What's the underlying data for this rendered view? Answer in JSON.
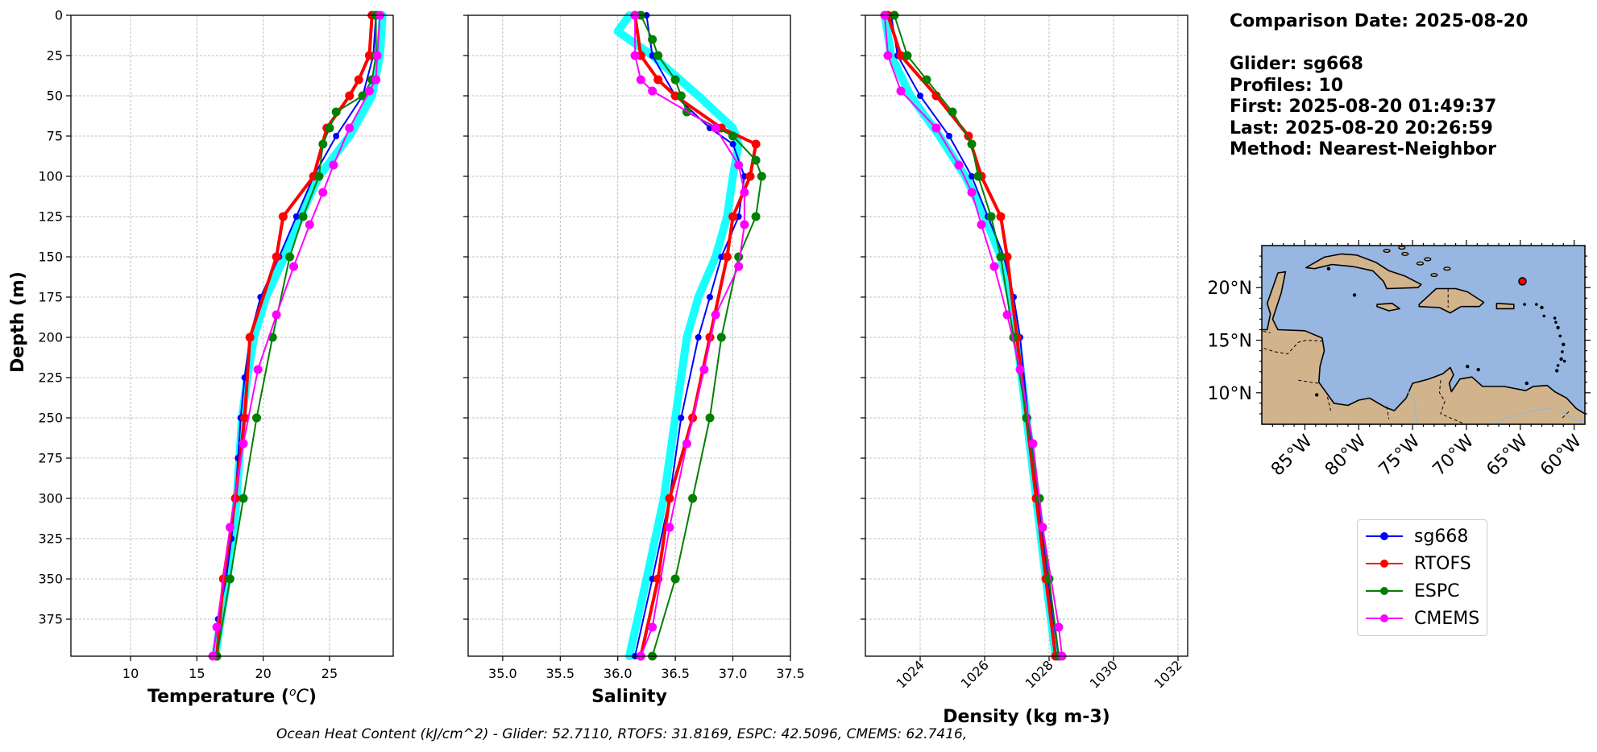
{
  "info": {
    "date": "Comparison Date: 2025-08-20",
    "glider": "Glider: sg668",
    "profiles": "Profiles: 10",
    "first": "First: 2025-08-20 01:49:37",
    "last": "Last: 2025-08-20 20:26:59",
    "method": "Method: Nearest-Neighbor"
  },
  "caption": "Ocean Heat Content (kJ/cm^2) - Glider: 52.7110,  RTOFS: 31.8169,  ESPC: 42.5096,  CMEMS: 62.7416,",
  "colors": {
    "sg668": "#0000ff",
    "RTOFS": "#ff0000",
    "ESPC": "#008000",
    "CMEMS": "#ff00ff",
    "glider_profiles": "#00ffff",
    "ocean": "#97b6e1",
    "land": "#d2b48c",
    "grid": "#b0b0b0"
  },
  "legend": [
    {
      "name": "sg668",
      "color": "#0000ff"
    },
    {
      "name": "RTOFS",
      "color": "#ff0000"
    },
    {
      "name": "ESPC",
      "color": "#008000"
    },
    {
      "name": "CMEMS",
      "color": "#ff00ff"
    }
  ],
  "chart_data": [
    {
      "type": "line",
      "ylabel": "Depth (m)",
      "xlabel": "Temperature (°C)",
      "xlim": [
        5.5,
        29.8
      ],
      "ylim": [
        398,
        0
      ],
      "xticks": [
        10,
        15,
        20,
        25
      ],
      "yticks": [
        0,
        25,
        50,
        75,
        100,
        125,
        150,
        175,
        200,
        225,
        250,
        275,
        300,
        325,
        350,
        375
      ],
      "grid": true,
      "series": [
        {
          "name": "sg668",
          "depth": [
            0,
            25,
            50,
            75,
            100,
            125,
            150,
            175,
            200,
            225,
            250,
            275,
            300,
            325,
            350,
            375,
            398
          ],
          "values": [
            28.5,
            28.3,
            27.5,
            25.5,
            23.8,
            22.5,
            21.2,
            19.8,
            19.0,
            18.6,
            18.3,
            18.1,
            17.9,
            17.6,
            17.2,
            16.6,
            16.2
          ]
        },
        {
          "name": "RTOFS",
          "depth": [
            0,
            25,
            40,
            50,
            70,
            100,
            125,
            150,
            200,
            250,
            300,
            350,
            398
          ],
          "values": [
            28.2,
            28.0,
            27.2,
            26.5,
            24.8,
            23.8,
            21.5,
            21.0,
            19.0,
            18.6,
            17.9,
            17.0,
            16.5
          ]
        },
        {
          "name": "ESPC",
          "depth": [
            0,
            25,
            40,
            50,
            60,
            70,
            80,
            100,
            125,
            150,
            200,
            250,
            300,
            350,
            398
          ],
          "values": [
            28.5,
            28.5,
            28.2,
            27.5,
            25.5,
            25.0,
            24.5,
            24.2,
            23.0,
            22.0,
            20.7,
            19.5,
            18.5,
            17.5,
            16.5
          ]
        },
        {
          "name": "CMEMS",
          "depth": [
            0,
            25,
            40,
            47,
            70,
            93,
            110,
            130,
            156,
            186,
            220,
            266,
            318,
            380,
            398
          ],
          "values": [
            28.8,
            28.6,
            28.5,
            28.0,
            26.5,
            25.3,
            24.5,
            23.5,
            22.3,
            21.0,
            19.6,
            18.5,
            17.5,
            16.5,
            16.2
          ]
        },
        {
          "name": "glider-profiles",
          "depth": [
            0,
            25,
            50,
            75,
            100,
            125,
            150,
            175,
            200,
            225,
            250,
            275,
            300,
            325,
            350,
            375,
            398
          ],
          "values": [
            29.0,
            28.8,
            28.2,
            26.5,
            24.2,
            22.8,
            21.6,
            20.2,
            19.3,
            18.8,
            18.4,
            18.2,
            18.0,
            17.7,
            17.3,
            16.8,
            16.4
          ]
        }
      ]
    },
    {
      "type": "line",
      "xlabel": "Salinity",
      "xlim": [
        34.7,
        37.5
      ],
      "ylim": [
        398,
        0
      ],
      "xticks": [
        35.0,
        35.5,
        36.0,
        36.5,
        37.0,
        37.5
      ],
      "yticks": [
        0,
        25,
        50,
        75,
        100,
        125,
        150,
        175,
        200,
        225,
        250,
        275,
        300,
        325,
        350,
        375
      ],
      "grid": true,
      "series": [
        {
          "name": "sg668",
          "depth": [
            0,
            25,
            50,
            70,
            80,
            100,
            125,
            150,
            175,
            200,
            250,
            300,
            350,
            398
          ],
          "values": [
            36.25,
            36.3,
            36.5,
            36.8,
            37.0,
            37.1,
            37.05,
            36.9,
            36.8,
            36.7,
            36.55,
            36.45,
            36.3,
            36.15
          ]
        },
        {
          "name": "RTOFS",
          "depth": [
            0,
            25,
            40,
            50,
            70,
            80,
            100,
            125,
            150,
            200,
            250,
            300,
            350,
            398
          ],
          "values": [
            36.15,
            36.2,
            36.35,
            36.5,
            36.9,
            37.2,
            37.15,
            37.0,
            36.95,
            36.8,
            36.65,
            36.45,
            36.35,
            36.2
          ]
        },
        {
          "name": "ESPC",
          "depth": [
            0,
            15,
            25,
            40,
            50,
            60,
            75,
            90,
            100,
            125,
            150,
            200,
            250,
            300,
            350,
            398
          ],
          "values": [
            36.2,
            36.3,
            36.35,
            36.5,
            36.55,
            36.6,
            37.0,
            37.2,
            37.25,
            37.2,
            37.05,
            36.9,
            36.8,
            36.65,
            36.5,
            36.3
          ]
        },
        {
          "name": "CMEMS",
          "depth": [
            0,
            25,
            40,
            47,
            70,
            93,
            110,
            130,
            156,
            186,
            220,
            266,
            318,
            380,
            398
          ],
          "values": [
            36.15,
            36.15,
            36.2,
            36.3,
            36.85,
            37.05,
            37.1,
            37.1,
            37.05,
            36.85,
            36.75,
            36.6,
            36.45,
            36.3,
            36.2
          ]
        },
        {
          "name": "glider-profiles",
          "depth": [
            0,
            10,
            25,
            50,
            70,
            80,
            100,
            125,
            150,
            175,
            200,
            250,
            300,
            350,
            398
          ],
          "values": [
            36.1,
            36.0,
            36.3,
            36.7,
            37.0,
            37.05,
            37.0,
            36.95,
            36.85,
            36.7,
            36.6,
            36.5,
            36.4,
            36.25,
            36.1
          ]
        }
      ]
    },
    {
      "type": "line",
      "xlabel": "Density (kg m-3)",
      "xlim": [
        1022.3,
        1032.3
      ],
      "ylim": [
        398,
        0
      ],
      "xticks": [
        1024,
        1026,
        1028,
        1030,
        1032
      ],
      "yticks": [
        0,
        25,
        50,
        75,
        100,
        125,
        150,
        175,
        200,
        225,
        250,
        275,
        300,
        325,
        350,
        375
      ],
      "grid": true,
      "series": [
        {
          "name": "sg668",
          "depth": [
            0,
            25,
            50,
            75,
            100,
            125,
            150,
            175,
            200,
            250,
            300,
            350,
            398
          ],
          "values": [
            1023.1,
            1023.3,
            1024.0,
            1024.9,
            1025.6,
            1026.1,
            1026.6,
            1026.9,
            1027.1,
            1027.35,
            1027.65,
            1027.95,
            1028.3
          ]
        },
        {
          "name": "RTOFS",
          "depth": [
            0,
            25,
            50,
            75,
            100,
            125,
            150,
            200,
            250,
            300,
            350,
            398
          ],
          "values": [
            1023.0,
            1023.4,
            1024.5,
            1025.5,
            1025.9,
            1026.5,
            1026.7,
            1027.0,
            1027.3,
            1027.6,
            1027.9,
            1028.2
          ]
        },
        {
          "name": "ESPC",
          "depth": [
            0,
            25,
            40,
            60,
            80,
            100,
            125,
            150,
            200,
            250,
            300,
            350,
            398
          ],
          "values": [
            1023.2,
            1023.6,
            1024.2,
            1025.0,
            1025.6,
            1025.8,
            1026.2,
            1026.5,
            1026.9,
            1027.3,
            1027.7,
            1028.0,
            1028.3
          ]
        },
        {
          "name": "CMEMS",
          "depth": [
            0,
            25,
            47,
            70,
            93,
            110,
            130,
            156,
            186,
            220,
            266,
            318,
            380,
            398
          ],
          "values": [
            1022.9,
            1023.0,
            1023.4,
            1024.5,
            1025.2,
            1025.6,
            1025.9,
            1026.3,
            1026.7,
            1027.1,
            1027.5,
            1027.8,
            1028.3,
            1028.4
          ]
        },
        {
          "name": "glider-profiles",
          "depth": [
            0,
            25,
            50,
            75,
            100,
            125,
            150,
            175,
            200,
            250,
            300,
            350,
            398
          ],
          "values": [
            1022.9,
            1023.1,
            1023.7,
            1024.6,
            1025.4,
            1026.0,
            1026.5,
            1026.8,
            1027.0,
            1027.3,
            1027.6,
            1027.9,
            1028.2
          ]
        }
      ]
    },
    {
      "type": "map",
      "xticks": [
        "85°W",
        "80°W",
        "75°W",
        "70°W",
        "65°W",
        "60°W"
      ],
      "yticks": [
        "20°N",
        "15°N",
        "10°N"
      ],
      "lon_range": [
        -89,
        -59
      ],
      "lat_range": [
        7,
        24
      ],
      "marker": {
        "lon": -64.8,
        "lat": 20.6
      }
    }
  ]
}
